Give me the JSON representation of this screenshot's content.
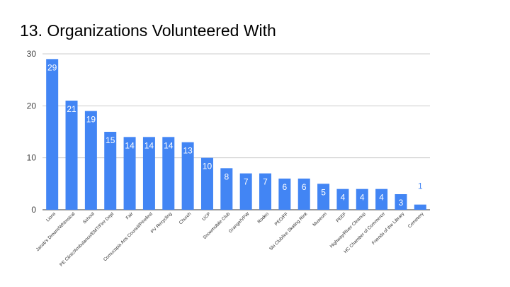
{
  "chart_data": {
    "type": "bar",
    "title": "13. Organizations Volunteered With",
    "xlabel": "",
    "ylabel": "",
    "ylim": [
      0,
      30
    ],
    "yticks": [
      0,
      10,
      20,
      30
    ],
    "grid": true,
    "legend": "none",
    "bar_color": "#4285f4",
    "label_color_inside": "#ffffff",
    "label_color_outside": "#4285f4",
    "categories": [
      "Lions",
      "Jacob's Dream/Whimsical",
      "School",
      "PE Clinic/Ambulance/EMT/Fire Dept",
      "Fair",
      "Comucopia Arts Council/Pinefest",
      "PV Recycling",
      "Church",
      "UCP",
      "Snowmobile Club",
      "Grange/VFW",
      "Rodeo",
      "PEO/FF",
      "Ski Club/Ice Skating Rink",
      "Museum",
      "PEEF",
      "Highway/River Cleanup",
      "HC Chamber of Commerce",
      "Friends of the Library",
      "Cemetery"
    ],
    "values": [
      29,
      21,
      19,
      15,
      14,
      14,
      14,
      13,
      10,
      8,
      7,
      7,
      6,
      6,
      5,
      4,
      4,
      4,
      3,
      1
    ]
  }
}
